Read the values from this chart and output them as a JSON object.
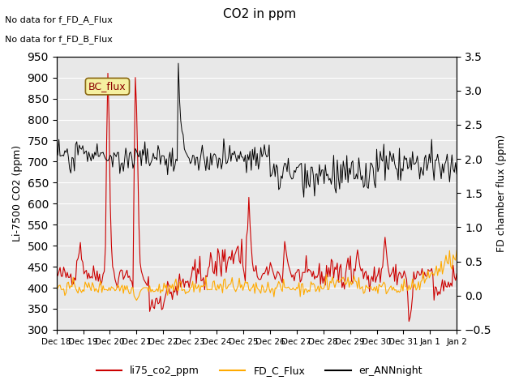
{
  "title": "CO2 in ppm",
  "ylabel_left": "Li-7500 CO2 (ppm)",
  "ylabel_right": "FD chamber flux (ppm)",
  "text_no_data_1": "No data for f_FD_A_Flux",
  "text_no_data_2": "No data for f_FD_B_Flux",
  "annotation_box": "BC_flux",
  "ylim_left": [
    300,
    950
  ],
  "ylim_right": [
    -0.5,
    3.5
  ],
  "yticks_left": [
    300,
    350,
    400,
    450,
    500,
    550,
    600,
    650,
    700,
    750,
    800,
    850,
    900,
    950
  ],
  "yticks_right": [
    -0.5,
    0.0,
    0.5,
    1.0,
    1.5,
    2.0,
    2.5,
    3.0,
    3.5
  ],
  "xtick_labels": [
    "Dec 18",
    "Dec 19",
    "Dec 20",
    "Dec 21",
    "Dec 22",
    "Dec 23",
    "Dec 24",
    "Dec 25",
    "Dec 26",
    "Dec 27",
    "Dec 28",
    "Dec 29",
    "Dec 30",
    "Dec 31",
    "Jan 1",
    "Jan 2"
  ],
  "color_red": "#cc0000",
  "color_orange": "#ffaa00",
  "color_black": "#000000",
  "legend_labels": [
    "li75_co2_ppm",
    "FD_C_Flux",
    "er_ANNnight"
  ],
  "background_color": "#e8e8e8",
  "n_points": 336,
  "seed": 42
}
